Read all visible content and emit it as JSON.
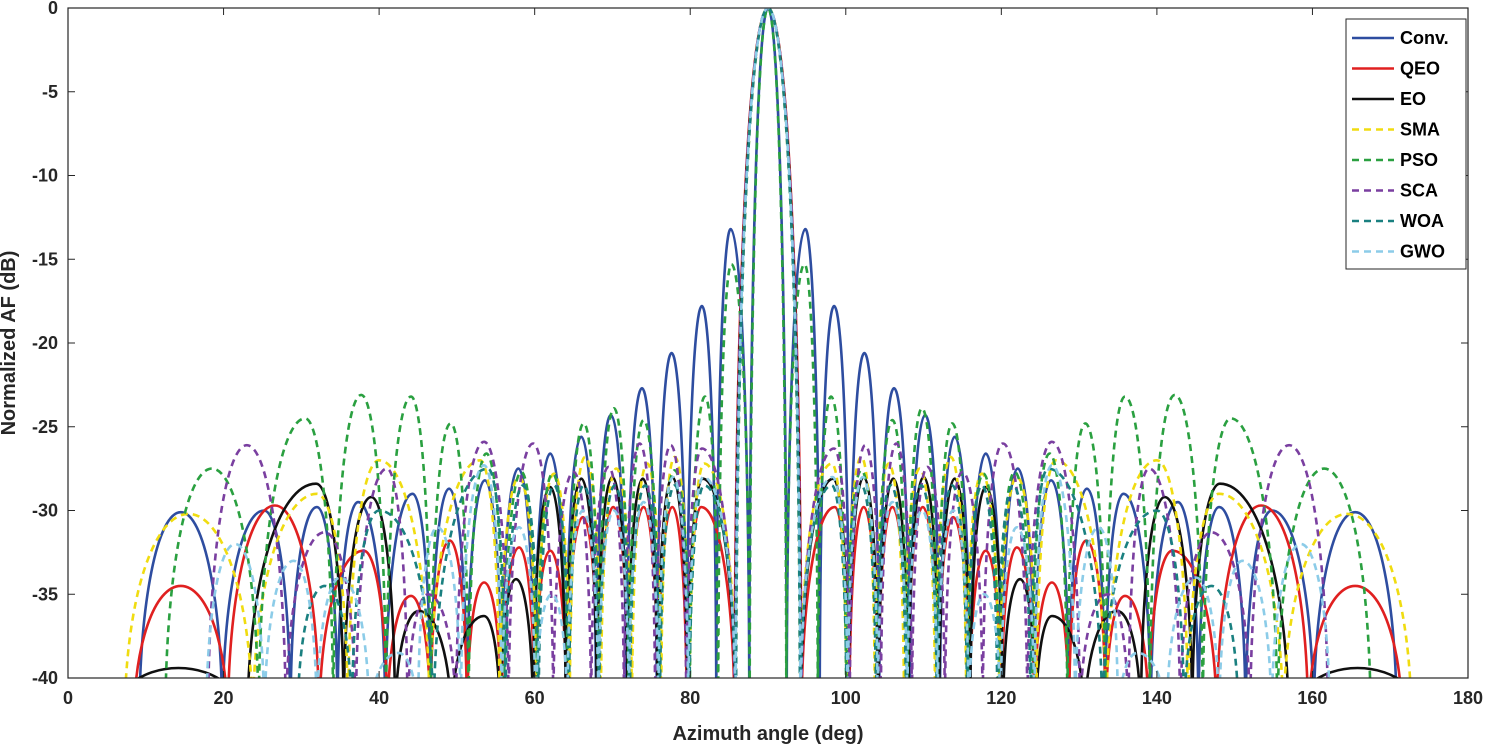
{
  "chart_data": {
    "type": "line",
    "title": "",
    "xlabel": "Azimuth angle (deg)",
    "ylabel": "Normalized AF (dB)",
    "xlim": [
      0,
      180
    ],
    "ylim": [
      -40,
      0
    ],
    "xticks": [
      0,
      20,
      40,
      60,
      80,
      100,
      120,
      140,
      160,
      180
    ],
    "yticks": [
      0,
      -5,
      -10,
      -15,
      -20,
      -25,
      -30,
      -35,
      -40
    ],
    "grid": false,
    "legend_position": "top-right",
    "series": [
      {
        "name": "Conv.",
        "color": "#2E4DA0",
        "style": "solid",
        "x": [
          14.5,
          25.2,
          32.0,
          37.3,
          44.3,
          49.0,
          53.6,
          57.9,
          62.0,
          66.0,
          69.8,
          73.8,
          77.6,
          81.5,
          85.2,
          90.0,
          94.8,
          98.5,
          102.4,
          106.2,
          110.2,
          114.0,
          118.0,
          122.1,
          126.4,
          131.0,
          135.7,
          142.7,
          148.0,
          154.8,
          165.5
        ],
        "y": [
          -30.1,
          -30.0,
          -29.8,
          -29.5,
          -29.0,
          -28.7,
          -28.2,
          -27.5,
          -26.6,
          -25.6,
          -24.3,
          -22.7,
          -20.6,
          -17.8,
          -13.2,
          0,
          -13.2,
          -17.8,
          -20.6,
          -22.7,
          -24.3,
          -25.6,
          -26.6,
          -27.5,
          -28.2,
          -28.7,
          -29.0,
          -29.5,
          -29.8,
          -30.0,
          -30.1
        ]
      },
      {
        "name": "QEO",
        "color": "#E02020",
        "style": "solid",
        "x": [
          14.5,
          26.6,
          38.0,
          44.1,
          49.1,
          53.5,
          58.0,
          62.0,
          66.2,
          70.1,
          74.0,
          77.7,
          81.4,
          90.0,
          98.6,
          102.3,
          106.0,
          109.9,
          113.8,
          118.0,
          122.0,
          126.5,
          130.9,
          135.9,
          142.0,
          153.4,
          165.5
        ],
        "y": [
          -34.5,
          -29.7,
          -32.4,
          -35.1,
          -31.8,
          -34.3,
          -32.2,
          -32.4,
          -30.4,
          -29.8,
          -29.8,
          -29.8,
          -29.8,
          0,
          -29.8,
          -29.8,
          -29.8,
          -29.8,
          -30.4,
          -32.4,
          -32.2,
          -34.3,
          -31.8,
          -35.1,
          -32.4,
          -29.7,
          -34.5
        ]
      },
      {
        "name": "EO",
        "color": "#101010",
        "style": "solid",
        "x": [
          14.2,
          31.9,
          39.0,
          45.1,
          53.5,
          57.6,
          62.0,
          66.0,
          70.0,
          73.9,
          77.7,
          81.6,
          90.0,
          98.4,
          102.3,
          106.1,
          110.0,
          114.0,
          118.0,
          122.4,
          126.5,
          134.9,
          141.0,
          148.1,
          165.8
        ],
        "y": [
          -39.4,
          -28.4,
          -29.2,
          -36.0,
          -36.3,
          -34.1,
          -28.6,
          -28.1,
          -28.0,
          -28.1,
          -28.0,
          -28.1,
          0,
          -28.1,
          -28.0,
          -28.1,
          -28.0,
          -28.1,
          -28.6,
          -34.1,
          -36.3,
          -36.0,
          -29.2,
          -28.4,
          -39.4
        ]
      },
      {
        "name": "SMA",
        "color": "#F0DC10",
        "style": "dashed",
        "x": [
          15.5,
          32.0,
          40.0,
          53.0,
          58.0,
          62.5,
          66.5,
          70.5,
          74.5,
          78.0,
          81.8,
          90.0,
          98.2,
          102.0,
          105.5,
          109.5,
          113.5,
          117.5,
          122.0,
          127.0,
          140.0,
          148.0,
          164.5
        ],
        "y": [
          -30.2,
          -29.0,
          -27.0,
          -27.0,
          -28.0,
          -27.8,
          -26.8,
          -27.5,
          -27.2,
          -26.8,
          -27.2,
          0,
          -27.2,
          -26.8,
          -27.2,
          -27.5,
          -26.8,
          -27.8,
          -28.0,
          -27.0,
          -27.0,
          -29.0,
          -30.2
        ]
      },
      {
        "name": "PSO",
        "color": "#2AA040",
        "style": "dashed",
        "x": [
          18.5,
          30.5,
          37.7,
          44.1,
          49.2,
          53.8,
          58.3,
          62.3,
          66.3,
          70.2,
          74.0,
          78.0,
          81.9,
          85.3,
          90.0,
          94.7,
          98.1,
          102.0,
          106.0,
          109.8,
          113.7,
          117.7,
          121.7,
          126.2,
          130.8,
          135.9,
          142.3,
          149.5,
          161.5
        ],
        "y": [
          -27.5,
          -24.5,
          -23.1,
          -23.2,
          -24.8,
          -26.6,
          -27.7,
          -27.8,
          -24.8,
          -23.9,
          -24.6,
          -27.6,
          -23.2,
          -15.3,
          0,
          -15.3,
          -23.2,
          -27.6,
          -24.6,
          -23.9,
          -24.8,
          -27.8,
          -27.7,
          -26.6,
          -24.8,
          -23.2,
          -23.1,
          -24.5,
          -27.5
        ]
      },
      {
        "name": "SCA",
        "color": "#7A3FA0",
        "style": "dashed",
        "x": [
          23.0,
          33.0,
          41.0,
          46.3,
          53.5,
          59.8,
          65.0,
          69.5,
          73.5,
          77.5,
          81.5,
          90.0,
          98.5,
          102.5,
          106.5,
          110.5,
          115.0,
          120.2,
          126.5,
          133.7,
          139.0,
          147.0,
          157.0
        ],
        "y": [
          -26.1,
          -31.3,
          -27.5,
          -35.0,
          -25.9,
          -26.0,
          -27.7,
          -27.4,
          -26.0,
          -26.1,
          -26.3,
          0,
          -26.3,
          -26.1,
          -26.0,
          -27.4,
          -27.7,
          -26.0,
          -25.9,
          -35.0,
          -27.5,
          -31.3,
          -26.1
        ]
      },
      {
        "name": "WOA",
        "color": "#1A8080",
        "style": "dashed",
        "x": [
          33.0,
          40.0,
          54.0,
          58.5,
          62.5,
          66.3,
          70.3,
          74.2,
          78.0,
          81.8,
          90.0,
          98.2,
          102.0,
          105.8,
          109.7,
          113.7,
          117.5,
          121.5,
          126.0,
          140.0,
          147.0
        ],
        "y": [
          -34.5,
          -30.0,
          -27.5,
          -28.5,
          -28.5,
          -28.5,
          -28.5,
          -28.5,
          -28.5,
          -28.5,
          0,
          -28.5,
          -28.5,
          -28.5,
          -28.5,
          -28.5,
          -28.5,
          -28.5,
          -27.5,
          -30.0,
          -34.5
        ]
      },
      {
        "name": "GWO",
        "color": "#8CCCE8",
        "style": "dashed",
        "x": [
          21.5,
          29.0,
          35.0,
          42.5,
          47.5,
          53.5,
          58.0,
          62.2,
          66.2,
          70.2,
          74.0,
          77.8,
          81.7,
          90.0,
          98.3,
          102.2,
          106.0,
          109.8,
          113.8,
          117.8,
          122.0,
          126.5,
          132.5,
          137.5,
          145.0,
          151.0,
          158.5
        ],
        "y": [
          -32.0,
          -33.0,
          -34.0,
          -38.5,
          -31.0,
          -27.3,
          -31.0,
          -35.0,
          -30.0,
          -30.0,
          -29.5,
          -28.0,
          -28.0,
          0,
          -28.0,
          -28.0,
          -29.5,
          -30.0,
          -30.0,
          -35.0,
          -31.0,
          -27.3,
          -31.0,
          -38.5,
          -34.0,
          -33.0,
          -32.0
        ]
      }
    ]
  }
}
